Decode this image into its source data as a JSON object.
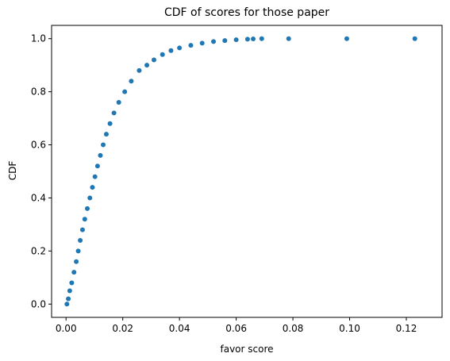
{
  "chart_data": {
    "type": "scatter",
    "title": "CDF of scores for those paper",
    "xlabel": "favor score",
    "ylabel": "CDF",
    "color": "#1f77b4",
    "grid": false,
    "xlim": [
      -0.0051,
      0.1326
    ],
    "ylim": [
      -0.05,
      1.05
    ],
    "xticks": [
      {
        "value": 0,
        "label": "0.00"
      },
      {
        "value": 0.02,
        "label": "0.02"
      },
      {
        "value": 0.04,
        "label": "0.04"
      },
      {
        "value": 0.06,
        "label": "0.06"
      },
      {
        "value": 0.08,
        "label": "0.08"
      },
      {
        "value": 0.1,
        "label": "0.10"
      },
      {
        "value": 0.12,
        "label": "0.12"
      }
    ],
    "yticks": [
      {
        "value": 0,
        "label": "0.0"
      },
      0.2,
      0.4,
      0.6,
      0.8,
      {
        "value": 1,
        "label": "1.0"
      }
    ],
    "x": [
      0.0003,
      0.0008,
      0.0013,
      0.002,
      0.0028,
      0.0036,
      0.0043,
      0.005,
      0.0058,
      0.0066,
      0.0075,
      0.0084,
      0.0093,
      0.0102,
      0.0111,
      0.0121,
      0.0131,
      0.0142,
      0.0155,
      0.0169,
      0.0186,
      0.0207,
      0.023,
      0.0258,
      0.0285,
      0.031,
      0.034,
      0.037,
      0.04,
      0.044,
      0.048,
      0.052,
      0.056,
      0.06,
      0.064,
      0.066,
      0.069,
      0.0785,
      0.099,
      0.123
    ],
    "values": [
      0.0,
      0.02,
      0.05,
      0.08,
      0.12,
      0.16,
      0.2,
      0.24,
      0.28,
      0.32,
      0.36,
      0.4,
      0.44,
      0.48,
      0.52,
      0.56,
      0.6,
      0.64,
      0.68,
      0.72,
      0.76,
      0.8,
      0.84,
      0.88,
      0.9,
      0.92,
      0.94,
      0.955,
      0.965,
      0.975,
      0.983,
      0.989,
      0.993,
      0.996,
      0.998,
      0.999,
      1.0,
      1.0,
      1.0,
      1.0
    ]
  }
}
